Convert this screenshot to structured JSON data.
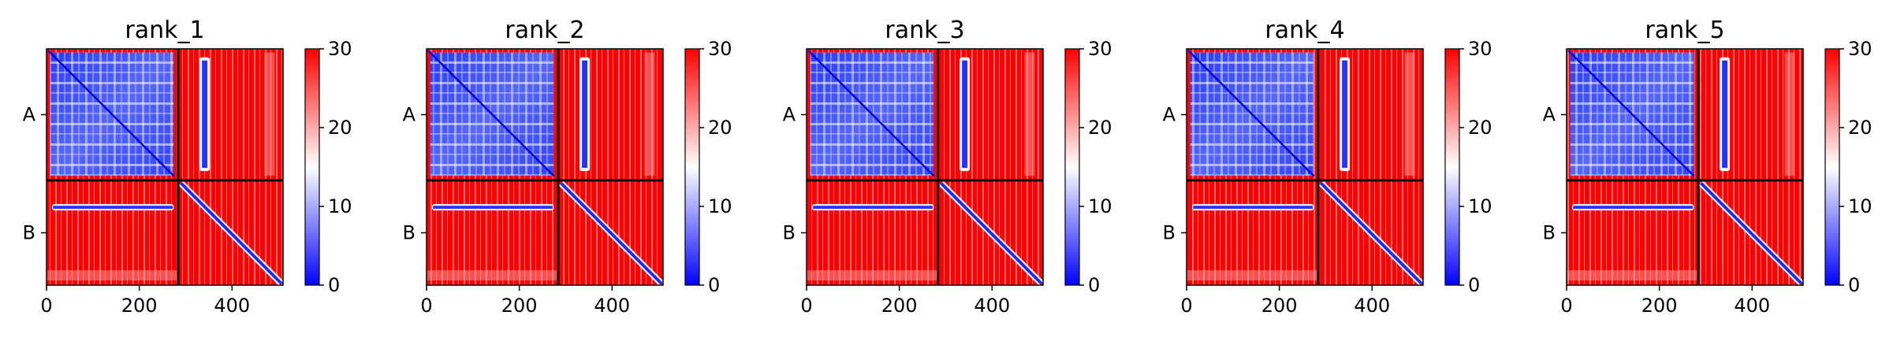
{
  "chart_data": {
    "type": "heatmap",
    "description_colormap": "bwr",
    "colorbar": {
      "min": 0,
      "max": 30,
      "ticks": [
        0,
        10,
        20,
        30
      ]
    },
    "axis_x": {
      "range": [
        0,
        510
      ],
      "ticks": [
        0,
        200,
        400
      ]
    },
    "chains": [
      {
        "label": "A",
        "start": 0,
        "end": 284
      },
      {
        "label": "B",
        "start": 284,
        "end": 510
      }
    ],
    "colors": {
      "low": "#0000ff",
      "mid": "#ffffff",
      "high": "#ff0000",
      "divider": "#000000"
    },
    "panels": [
      {
        "title": "rank_1"
      },
      {
        "title": "rank_2"
      },
      {
        "title": "rank_3"
      },
      {
        "title": "rank_4"
      },
      {
        "title": "rank_5"
      }
    ]
  }
}
